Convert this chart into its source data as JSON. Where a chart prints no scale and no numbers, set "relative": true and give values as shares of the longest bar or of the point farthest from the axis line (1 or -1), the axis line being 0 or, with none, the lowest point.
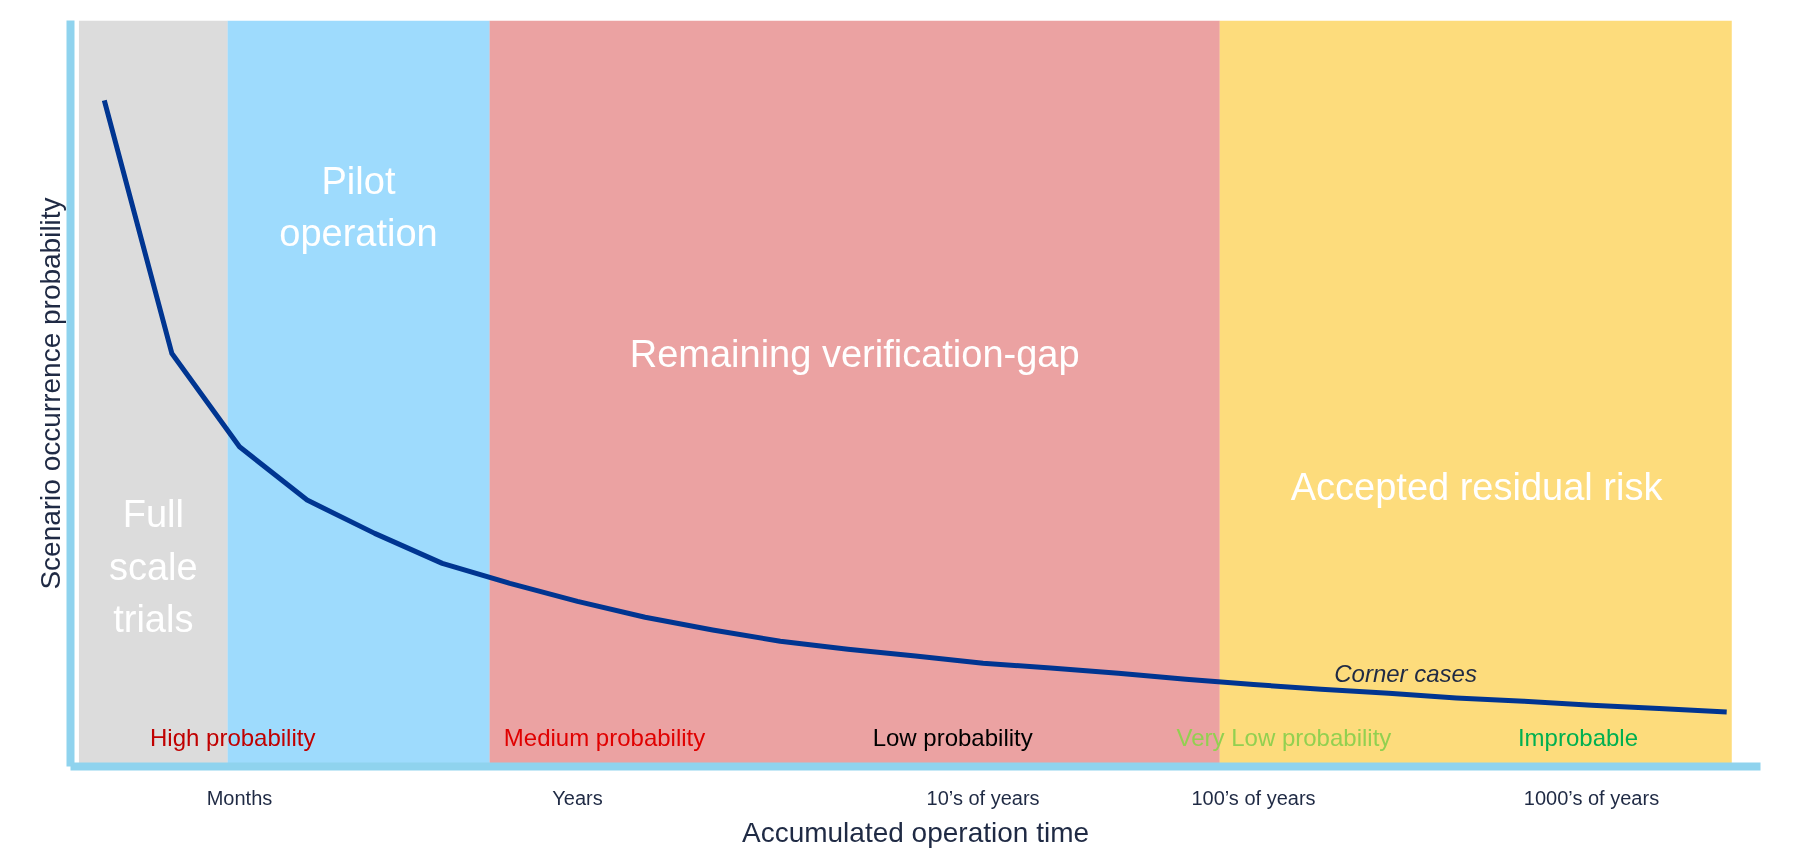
{
  "chart_data": {
    "type": "line",
    "relative": true,
    "xlabel": "Accumulated operation time",
    "ylabel": "Scenario occurrence probability",
    "categories": [
      null,
      null,
      "Months",
      null,
      null,
      null,
      null,
      "Years",
      null,
      null,
      null,
      null,
      null,
      "10’s of years",
      null,
      null,
      null,
      "100’s of years",
      null,
      null,
      null,
      null,
      "1000’s of years",
      null,
      null
    ],
    "tick_labels": "x",
    "grid": false,
    "marker": "none",
    "line_style": "solid",
    "series": [
      {
        "color": "#003591",
        "values": [
          1.0,
          0.62,
          0.48,
          0.4,
          0.35,
          0.305,
          0.275,
          0.248,
          0.224,
          0.205,
          0.188,
          0.176,
          0.166,
          0.155,
          0.148,
          0.14,
          0.131,
          0.123,
          0.116,
          0.11,
          0.103,
          0.098,
          0.092,
          0.087,
          0.082
        ]
      }
    ],
    "annotations": [
      "Full\nscale\ntrials",
      "Pilot\noperation",
      "Remaining verification-gap",
      "Accepted residual risk",
      "High probability",
      "Medium probability",
      "Low probability",
      "Very Low probability",
      "Improbable",
      "Corner cases"
    ]
  }
}
